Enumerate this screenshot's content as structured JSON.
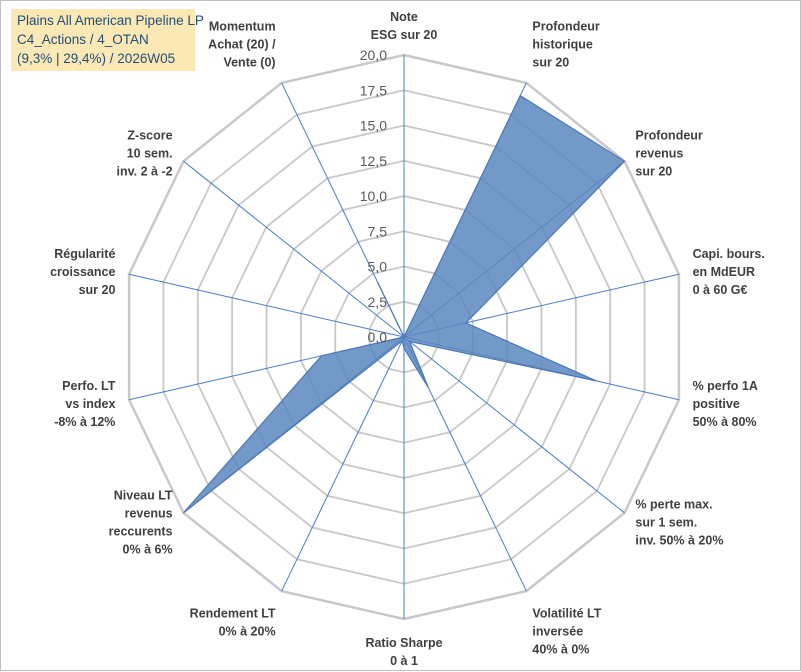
{
  "title_box": {
    "line1": "Plains All American Pipeline LP",
    "line2": "C4_Actions / 4_OTAN",
    "line3": "(9,3% | 29,4%) / 2026W05"
  },
  "chart_data": {
    "type": "radar",
    "title": "Plains All American Pipeline LP",
    "range": [
      0,
      20
    ],
    "tick_step": 2.5,
    "ticks": [
      "0,0",
      "2,5",
      "5,0",
      "7,5",
      "10,0",
      "12,5",
      "15,0",
      "17,5",
      "20,0"
    ],
    "axes": [
      [
        "Note",
        "ESG sur 20"
      ],
      [
        "Profondeur",
        "historique",
        "sur 20"
      ],
      [
        "Profondeur",
        "revenus",
        "sur 20"
      ],
      [
        "Capi. bours.",
        "en MdEUR",
        "0 à 60 G€"
      ],
      [
        "% perfo 1A",
        "positive",
        "50% à 80%"
      ],
      [
        "% perte max.",
        "sur 1 sem.",
        "inv. 50% à 20%"
      ],
      [
        "Volatilité LT",
        "inversée",
        "40% à 0%"
      ],
      [
        "Ratio Sharpe",
        "0 à 1"
      ],
      [
        "Rendement LT",
        "0% à 20%"
      ],
      [
        "Niveau LT",
        "revenus",
        "reccurents",
        "0% à 6%"
      ],
      [
        "Perfo. LT",
        "vs index",
        "-8% à 12%"
      ],
      [
        "Régularité",
        "croissance",
        "sur 20"
      ],
      [
        "Z-score",
        "10 sem.",
        "inv. 2 à -2"
      ],
      [
        "Momentum",
        "Achat (20) /",
        "Vente (0)"
      ]
    ],
    "series": [
      {
        "name": "Plains All American Pipeline LP",
        "values": [
          0,
          19,
          20,
          4.5,
          14,
          0.5,
          4,
          0.8,
          0.3,
          20,
          6,
          0,
          0,
          4.3
        ]
      }
    ],
    "colors": {
      "fill": "#5b87c0",
      "stroke": "#4a78b8",
      "grid": "#c8c8c8",
      "spoke": "#4a7cc9"
    }
  }
}
